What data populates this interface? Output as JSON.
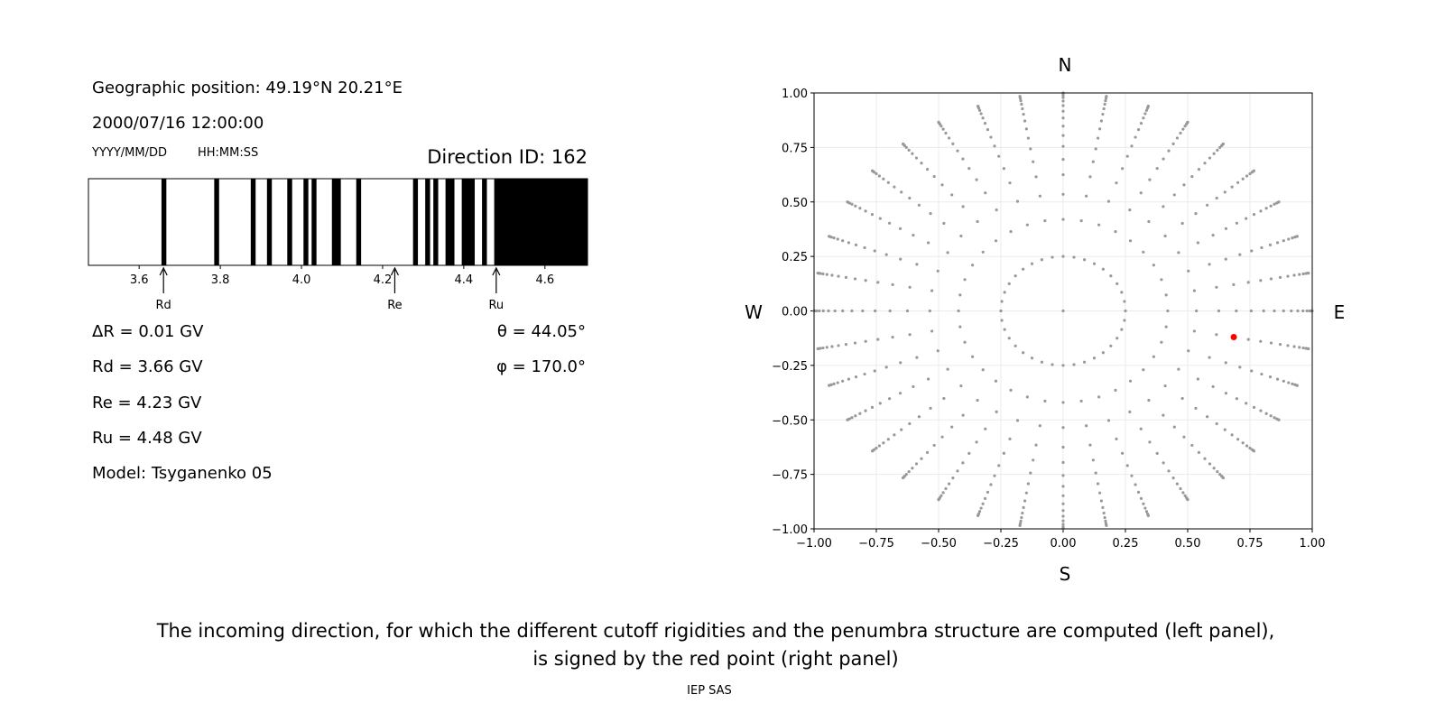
{
  "info": {
    "geo_position": "Geographic position: 49.19°N 20.21°E",
    "datetime": "2000/07/16 12:00:00",
    "date_format": "YYYY/MM/DD",
    "time_format": "HH:MM:SS",
    "direction_id": "Direction ID: 162",
    "delta_r": "ΔR = 0.01 GV",
    "rd": "Rd = 3.66 GV",
    "re": "Re = 4.23 GV",
    "ru": "Ru = 4.48 GV",
    "model": "Model: Tsyganenko 05",
    "theta": "θ = 44.05°",
    "phi": "φ = 170.0°"
  },
  "caption": {
    "line1": "The incoming direction, for which the different cutoff rigidities and the penumbra structure are computed (left panel),",
    "line2": "is signed by the red point (right panel)",
    "footer": "IEP SAS"
  },
  "chart_data": [
    {
      "type": "penumbra-bar",
      "xlabel": "",
      "xlim": [
        3.475,
        4.705
      ],
      "xticks": [
        3.6,
        3.8,
        4.0,
        4.2,
        4.4,
        4.6
      ],
      "xtick_labels": [
        "3.6",
        "3.8",
        "4.0",
        "4.2",
        "4.4",
        "4.6"
      ],
      "step": 0.01,
      "forbidden_rigidities": [
        3.66,
        3.79,
        3.88,
        3.92,
        3.97,
        4.01,
        4.03,
        4.08,
        4.09,
        4.14,
        4.28,
        4.31,
        4.33,
        4.36,
        4.37,
        4.4,
        4.41,
        4.42,
        4.45
      ],
      "forbidden_above": 4.48,
      "colors": {
        "forbidden": "#000000",
        "allowed": "#ffffff"
      },
      "markers": [
        {
          "label": "Rd",
          "value": 3.66
        },
        {
          "label": "Re",
          "value": 4.23
        },
        {
          "label": "Ru",
          "value": 4.48
        }
      ]
    },
    {
      "type": "scatter",
      "xlim": [
        -1,
        1
      ],
      "ylim": [
        -1,
        1
      ],
      "ticks": [
        -1.0,
        -0.75,
        -0.5,
        -0.25,
        0.0,
        0.25,
        0.5,
        0.75,
        1.0
      ],
      "tick_labels": [
        "−1.00",
        "−0.75",
        "−0.50",
        "−0.25",
        "0.00",
        "0.25",
        "0.50",
        "0.75",
        "1.00"
      ],
      "grid": true,
      "compass": {
        "north": "N",
        "south": "S",
        "west": "W",
        "east": "E"
      },
      "direction_grid": {
        "azimuth_step_deg": 10,
        "radii": [
          0.25,
          0.42,
          0.535,
          0.625,
          0.695,
          0.755,
          0.805,
          0.848,
          0.885,
          0.916,
          0.942,
          0.963,
          0.979,
          0.99,
          0.997,
          1.0
        ],
        "center_point": true,
        "color": "#999999"
      },
      "selected_point": {
        "x": 0.685,
        "y": -0.12,
        "color": "#ff0000"
      }
    }
  ]
}
